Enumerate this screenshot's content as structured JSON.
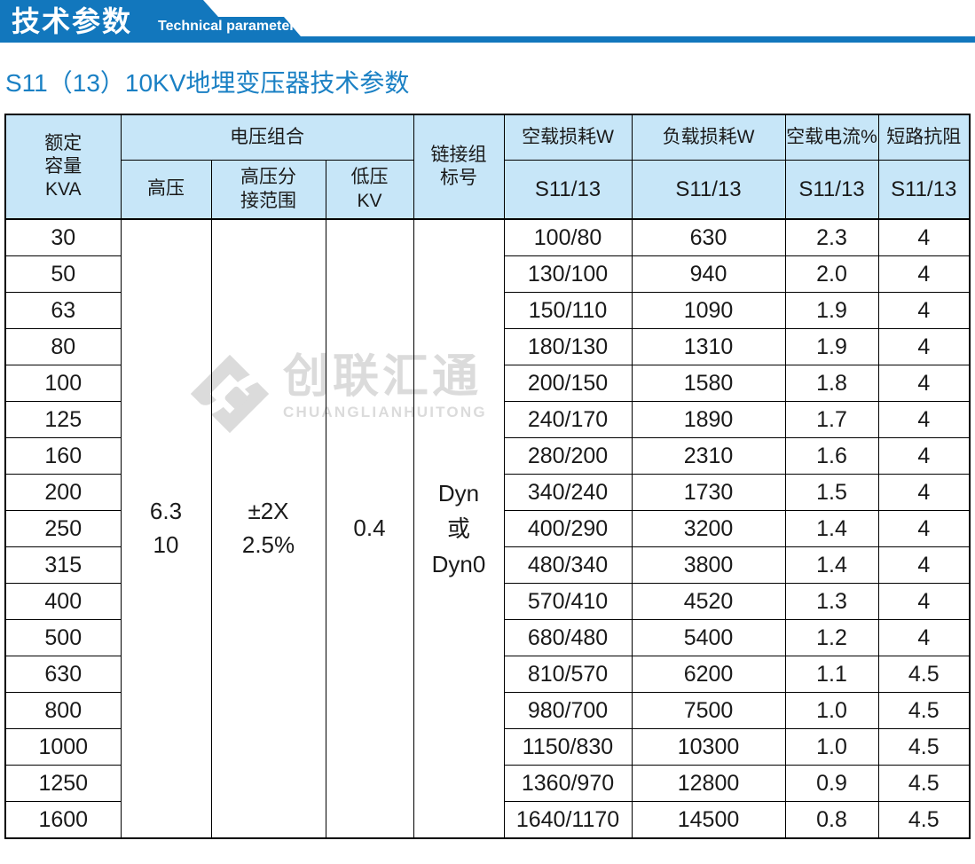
{
  "banner": {
    "title_zh": "技术参数",
    "title_en": "Technical parameter"
  },
  "page": {
    "subtitle": "S11（13）10KV地埋变压器技术参数"
  },
  "watermark": {
    "name_zh": "创联汇通",
    "name_en": "CHUANGLIANHUITONG",
    "color": "#DBDBDB"
  },
  "colors": {
    "banner_blue": "#1277BD",
    "subtitle_blue": "#1A80C4",
    "header_bg": "#C7E6F8",
    "border": "#000000"
  },
  "table": {
    "header": {
      "rated_capacity": "额定\n容量\nKVA",
      "voltage_combination": "电压组合",
      "high_voltage": "高压",
      "hv_tap_range": "高压分\n接范围",
      "low_voltage": "低压\nKV",
      "vector_group": "链接组\n标号",
      "no_load_loss": "空载损耗W",
      "load_loss": "负载损耗W",
      "no_load_current": "空载电流%",
      "short_circuit_impedance": "短路抗阻",
      "series_label": "S11/13"
    },
    "merged": {
      "high_voltage": "6.3\n10",
      "hv_tap_range": "±2X\n2.5%",
      "low_voltage": "0.4",
      "vector_group": "Dyn\n或\nDyn0"
    },
    "rows": [
      {
        "capacity": "30",
        "no_load_loss": "100/80",
        "load_loss": "630",
        "no_load_current": "2.3",
        "impedance": "4"
      },
      {
        "capacity": "50",
        "no_load_loss": "130/100",
        "load_loss": "940",
        "no_load_current": "2.0",
        "impedance": "4"
      },
      {
        "capacity": "63",
        "no_load_loss": "150/110",
        "load_loss": "1090",
        "no_load_current": "1.9",
        "impedance": "4"
      },
      {
        "capacity": "80",
        "no_load_loss": "180/130",
        "load_loss": "1310",
        "no_load_current": "1.9",
        "impedance": "4"
      },
      {
        "capacity": "100",
        "no_load_loss": "200/150",
        "load_loss": "1580",
        "no_load_current": "1.8",
        "impedance": "4"
      },
      {
        "capacity": "125",
        "no_load_loss": "240/170",
        "load_loss": "1890",
        "no_load_current": "1.7",
        "impedance": "4"
      },
      {
        "capacity": "160",
        "no_load_loss": "280/200",
        "load_loss": "2310",
        "no_load_current": "1.6",
        "impedance": "4"
      },
      {
        "capacity": "200",
        "no_load_loss": "340/240",
        "load_loss": "1730",
        "no_load_current": "1.5",
        "impedance": "4"
      },
      {
        "capacity": "250",
        "no_load_loss": "400/290",
        "load_loss": "3200",
        "no_load_current": "1.4",
        "impedance": "4"
      },
      {
        "capacity": "315",
        "no_load_loss": "480/340",
        "load_loss": "3800",
        "no_load_current": "1.4",
        "impedance": "4"
      },
      {
        "capacity": "400",
        "no_load_loss": "570/410",
        "load_loss": "4520",
        "no_load_current": "1.3",
        "impedance": "4"
      },
      {
        "capacity": "500",
        "no_load_loss": "680/480",
        "load_loss": "5400",
        "no_load_current": "1.2",
        "impedance": "4"
      },
      {
        "capacity": "630",
        "no_load_loss": "810/570",
        "load_loss": "6200",
        "no_load_current": "1.1",
        "impedance": "4.5"
      },
      {
        "capacity": "800",
        "no_load_loss": "980/700",
        "load_loss": "7500",
        "no_load_current": "1.0",
        "impedance": "4.5"
      },
      {
        "capacity": "1000",
        "no_load_loss": "1150/830",
        "load_loss": "10300",
        "no_load_current": "1.0",
        "impedance": "4.5"
      },
      {
        "capacity": "1250",
        "no_load_loss": "1360/970",
        "load_loss": "12800",
        "no_load_current": "0.9",
        "impedance": "4.5"
      },
      {
        "capacity": "1600",
        "no_load_loss": "1640/1170",
        "load_loss": "14500",
        "no_load_current": "0.8",
        "impedance": "4.5"
      }
    ]
  }
}
